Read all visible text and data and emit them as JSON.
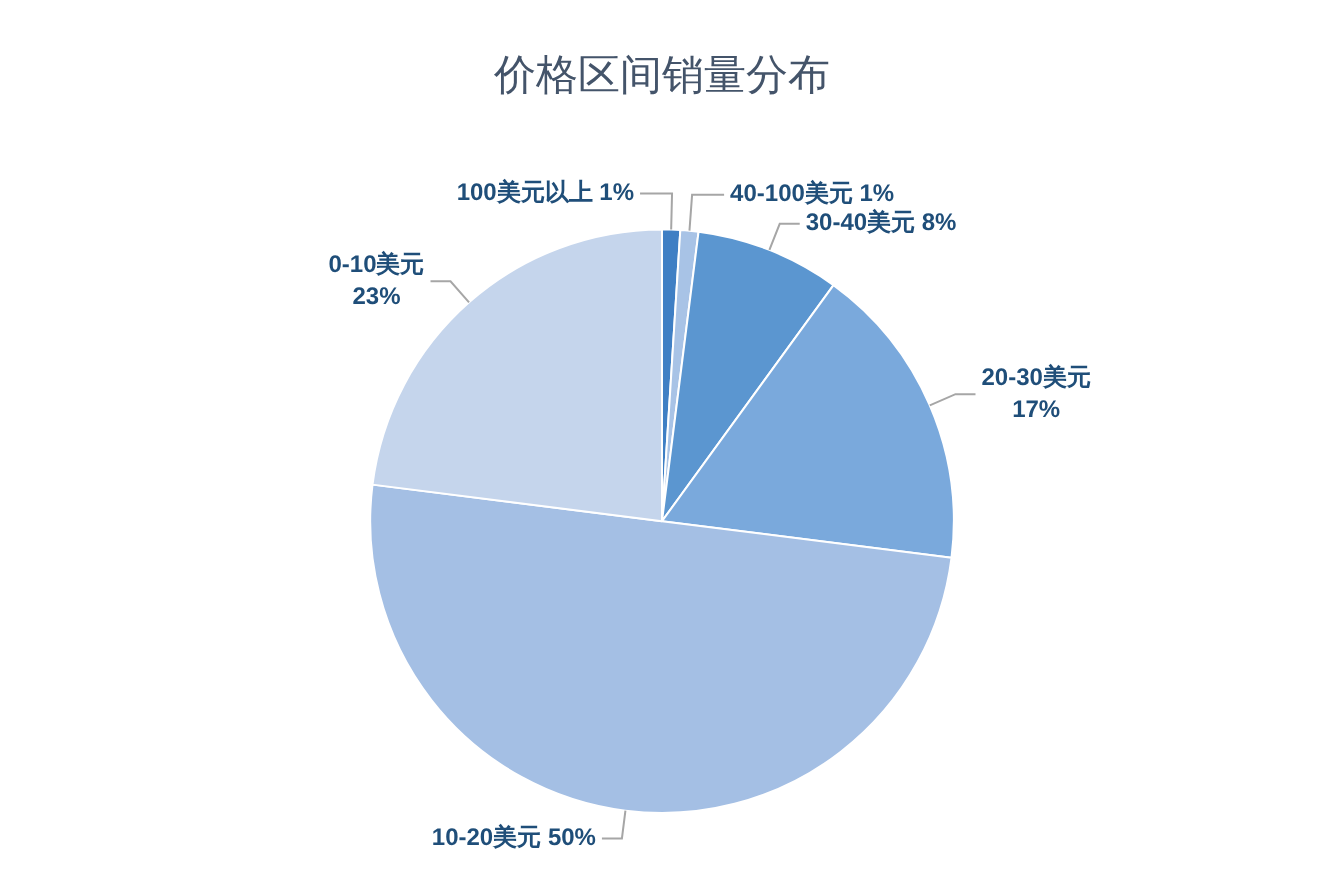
{
  "chart_data": {
    "type": "pie",
    "title": "价格区间销量分布",
    "categories": [
      "100美元以上",
      "40-100美元",
      "30-40美元",
      "20-30美元",
      "10-20美元",
      "0-10美元"
    ],
    "values": [
      1,
      1,
      8,
      17,
      50,
      23
    ],
    "value_labels": [
      "1%",
      "1%",
      "8%",
      "17%",
      "50%",
      "23%"
    ],
    "colors": [
      "#3f7fc4",
      "#a8c3e6",
      "#5b96d0",
      "#7aa9dc",
      "#a4bfe4",
      "#c5d5ec"
    ],
    "legend": false
  }
}
